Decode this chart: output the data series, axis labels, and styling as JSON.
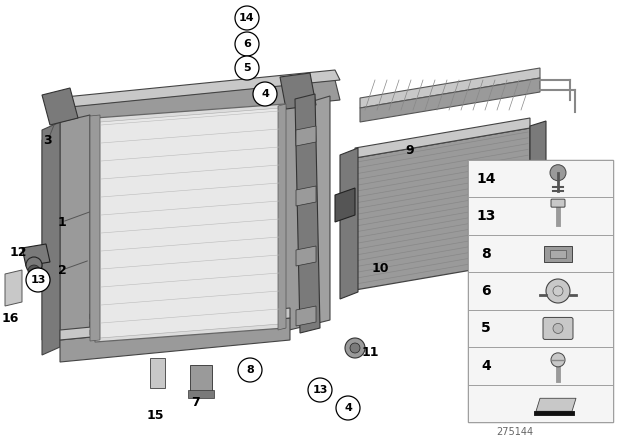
{
  "bg_color": "#ffffff",
  "part_number": "275144",
  "fig_width": 6.4,
  "fig_height": 4.48,
  "dpi": 100,
  "circle_bg": "#ffffff",
  "circle_border": "#000000",
  "label_font_size": 8,
  "circle_label_font_size": 7.5,
  "legend_num_font_size": 10
}
